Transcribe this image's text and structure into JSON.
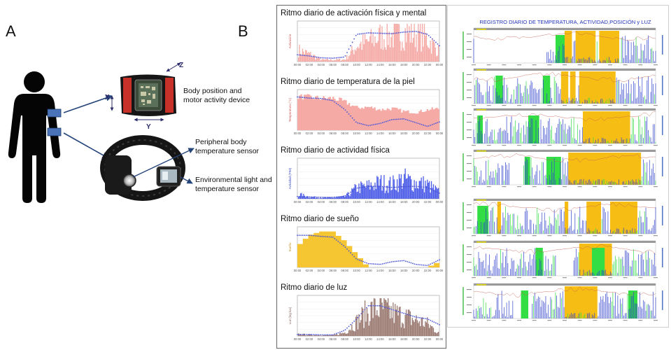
{
  "panel_a": {
    "letter": "A",
    "callouts": {
      "device": [
        "Body position and",
        "motor activity device"
      ],
      "temp": [
        "Peripheral body",
        "temperature sensor"
      ],
      "light": [
        "Environmental light and",
        "temperature sensor"
      ]
    },
    "axis_letters": {
      "x": "X",
      "y": "Y",
      "z": "Z"
    }
  },
  "panel_b": {
    "letter": "B",
    "register_title": "REGISTRO DIARIO DE TEMPERATURA, ACTIVIDAD,POSICIÓN y LUZ"
  },
  "colors": {
    "temperature_fill": "#f5aaa6",
    "activity_fill": "#4c5ce8",
    "sleep_fill": "#f5c631",
    "light_fill": "#9b7a72",
    "fit_line": "#4a55d8",
    "strip_blue": "#3344cc",
    "strip_green": "#33dd44",
    "strip_orange": "#f5b800"
  },
  "chart_data": [
    {
      "type": "area",
      "title": "Ritmo diario de activación física y mental",
      "xlabel": "",
      "ylabel": "Activación",
      "x": [
        "00:00",
        "02:00",
        "04:00",
        "06:00",
        "08:00",
        "10:00",
        "12:00",
        "14:00",
        "16:00",
        "18:00",
        "20:00",
        "22:00",
        "00:00"
      ],
      "series": [
        {
          "values": [
            0.32,
            0.2,
            0.05,
            0.05,
            0.06,
            0.45,
            0.55,
            0.7,
            0.72,
            0.82,
            0.78,
            0.65,
            0.3
          ]
        },
        {
          "values": [
            0.18,
            0.15,
            0.1,
            0.09,
            0.12,
            0.72,
            0.76,
            0.75,
            0.74,
            0.78,
            0.8,
            0.72,
            0.42
          ]
        }
      ],
      "ylim": [
        0,
        1
      ]
    },
    {
      "type": "area",
      "title": "Ritmo diario de temperatura de la piel",
      "xlabel": "",
      "ylabel": "Temperatura (°C)",
      "x": [
        "00:00",
        "02:00",
        "04:00",
        "06:00",
        "08:00",
        "10:00",
        "12:00",
        "14:00",
        "16:00",
        "18:00",
        "20:00",
        "22:00",
        "00:00"
      ],
      "series": [
        {
          "values": [
            0.9,
            0.88,
            0.85,
            0.86,
            0.75,
            0.6,
            0.62,
            0.55,
            0.58,
            0.5,
            0.48,
            0.55,
            0.58
          ]
        },
        {
          "values": [
            0.88,
            0.85,
            0.84,
            0.78,
            0.55,
            0.2,
            0.12,
            0.18,
            0.28,
            0.3,
            0.2,
            0.1,
            0.22
          ]
        }
      ],
      "ylim": [
        0,
        1
      ]
    },
    {
      "type": "area",
      "title": "Ritmo diario de actividad física",
      "xlabel": "",
      "ylabel": "Actividad (PIM)",
      "x": [
        "00:00",
        "02:00",
        "04:00",
        "06:00",
        "08:00",
        "10:00",
        "12:00",
        "14:00",
        "16:00",
        "18:00",
        "20:00",
        "22:00",
        "00:00"
      ],
      "series": [
        {
          "values": [
            0.12,
            0.05,
            0.03,
            0.03,
            0.06,
            0.3,
            0.35,
            0.45,
            0.4,
            0.55,
            0.45,
            0.4,
            0.2
          ]
        },
        {
          "values": [
            0.06,
            0.05,
            0.04,
            0.04,
            0.07,
            0.28,
            0.33,
            0.33,
            0.3,
            0.32,
            0.33,
            0.3,
            0.15
          ]
        }
      ],
      "ylim": [
        0,
        1
      ]
    },
    {
      "type": "area",
      "title": "Ritmo diario de sueño",
      "xlabel": "",
      "ylabel": "Sueño",
      "x": [
        "00:00",
        "02:00",
        "04:00",
        "06:00",
        "08:00",
        "10:00",
        "12:00",
        "14:00",
        "16:00",
        "18:00",
        "20:00",
        "22:00",
        "00:00"
      ],
      "series": [
        {
          "values": [
            0.55,
            0.85,
            0.95,
            0.95,
            0.7,
            0.35,
            0.0,
            0.0,
            0.0,
            0.0,
            0.0,
            0.0,
            0.15
          ]
        },
        {
          "values": [
            0.85,
            0.85,
            0.82,
            0.8,
            0.55,
            0.22,
            0.1,
            0.08,
            0.15,
            0.18,
            0.08,
            0.05,
            0.2
          ]
        }
      ],
      "ylim": [
        0,
        1
      ]
    },
    {
      "type": "area",
      "title": "Ritmo diario de luz",
      "xlabel": "",
      "ylabel": "Luz (log lux)",
      "x": [
        "00:00",
        "02:00",
        "04:00",
        "06:00",
        "08:00",
        "10:00",
        "12:00",
        "14:00",
        "16:00",
        "18:00",
        "20:00",
        "22:00",
        "00:00"
      ],
      "series": [
        {
          "values": [
            0.05,
            0.03,
            0.02,
            0.02,
            0.1,
            0.4,
            0.7,
            0.78,
            0.65,
            0.55,
            0.45,
            0.35,
            0.1
          ]
        },
        {
          "values": [
            0.04,
            0.04,
            0.03,
            0.03,
            0.15,
            0.45,
            0.8,
            0.8,
            0.7,
            0.6,
            0.5,
            0.45,
            0.3
          ]
        }
      ],
      "ylim": [
        0,
        1
      ]
    }
  ]
}
